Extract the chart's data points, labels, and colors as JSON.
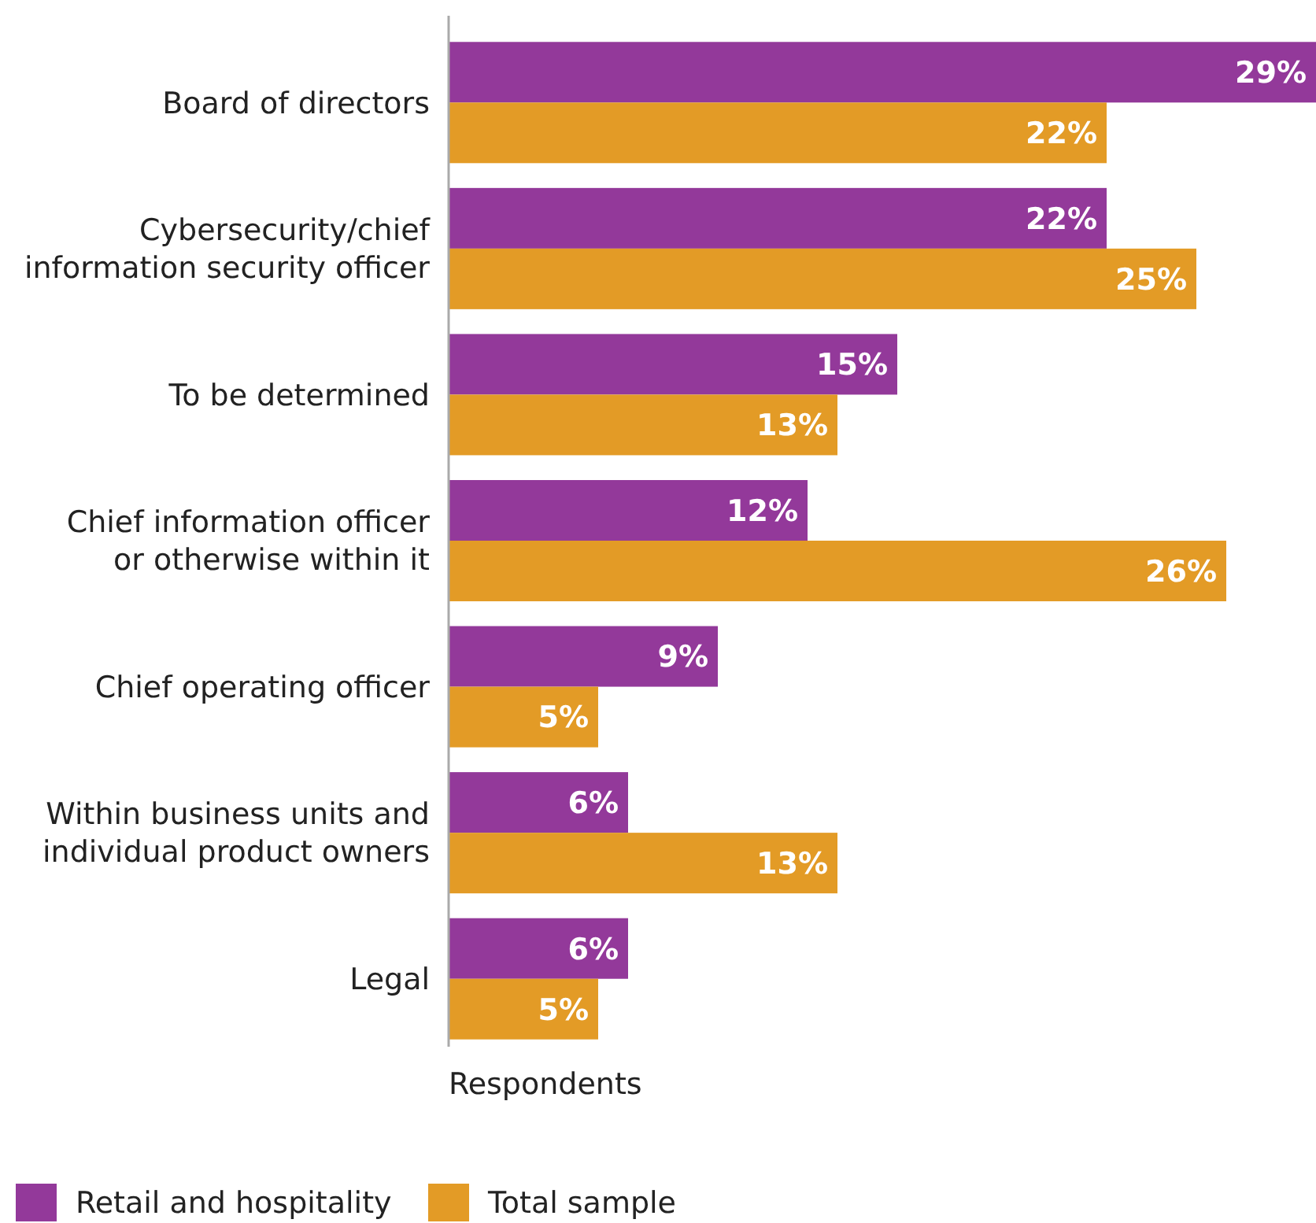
{
  "chart_data": {
    "type": "bar",
    "orientation": "horizontal",
    "xlabel": "Respondents",
    "legend": "bottom left",
    "categories": [
      "Board of directors",
      "Cybersecurity/chief\ninformation security officer",
      "To be determined",
      "Chief information officer\nor otherwise within it",
      "Chief operating officer",
      "Within business units and\nindividual product owners",
      "Legal"
    ],
    "series": [
      {
        "name": "Retail and hospitality",
        "color": "#93399a",
        "values": [
          29,
          22,
          15,
          12,
          9,
          6,
          6
        ],
        "value_labels": [
          "29%",
          "22%",
          "15%",
          "12%",
          "9%",
          "6%",
          "6%"
        ]
      },
      {
        "name": "Total sample",
        "color": "#e39b26",
        "values": [
          22,
          25,
          13,
          26,
          5,
          13,
          5
        ],
        "value_labels": [
          "22%",
          "25%",
          "13%",
          "26%",
          "5%",
          "13%",
          "5%"
        ]
      }
    ]
  }
}
